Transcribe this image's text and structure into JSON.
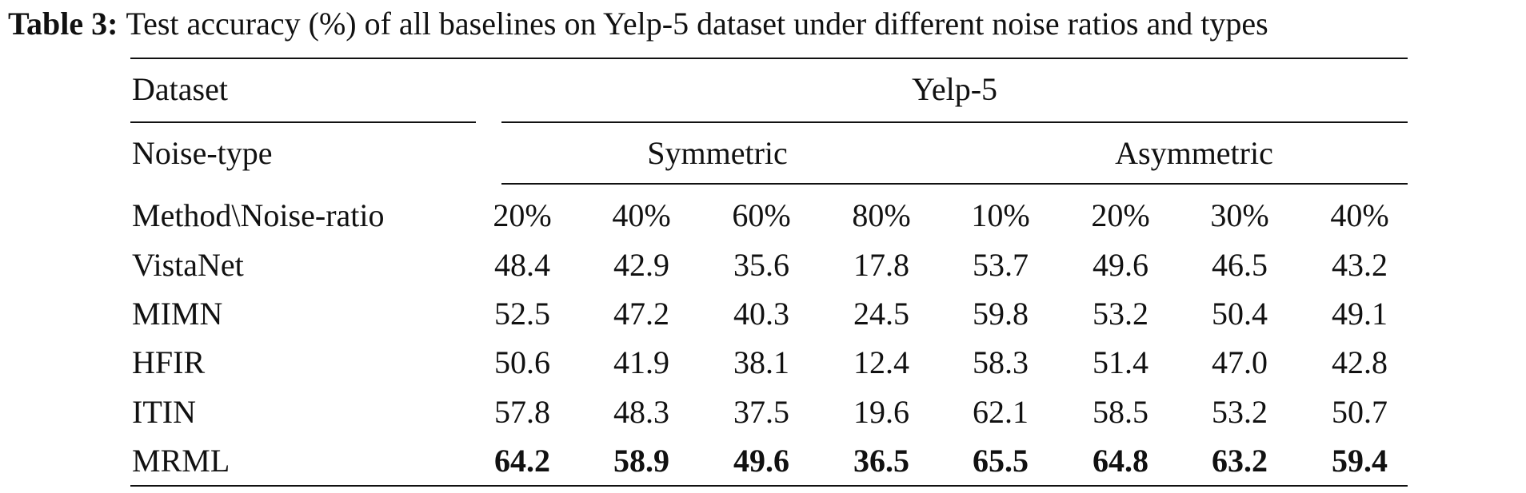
{
  "caption": {
    "label": "Table 3:",
    "text": "Test accuracy (%) of all baselines on Yelp-5 dataset under different noise ratios and types"
  },
  "table": {
    "dataset_label": "Dataset",
    "dataset_value": "Yelp-5",
    "noise_type_label": "Noise-type",
    "noise_types": [
      "Symmetric",
      "Asymmetric"
    ],
    "method_header": "Method\\Noise-ratio",
    "noise_ratios": [
      "20%",
      "40%",
      "60%",
      "80%",
      "10%",
      "20%",
      "30%",
      "40%"
    ],
    "rows": [
      {
        "method": "VistaNet",
        "values": [
          "48.4",
          "42.9",
          "35.6",
          "17.8",
          "53.7",
          "49.6",
          "46.5",
          "43.2"
        ],
        "bold": false
      },
      {
        "method": "MIMN",
        "values": [
          "52.5",
          "47.2",
          "40.3",
          "24.5",
          "59.8",
          "53.2",
          "50.4",
          "49.1"
        ],
        "bold": false
      },
      {
        "method": "HFIR",
        "values": [
          "50.6",
          "41.9",
          "38.1",
          "12.4",
          "58.3",
          "51.4",
          "47.0",
          "42.8"
        ],
        "bold": false
      },
      {
        "method": "ITIN",
        "values": [
          "57.8",
          "48.3",
          "37.5",
          "19.6",
          "62.1",
          "58.5",
          "53.2",
          "50.7"
        ],
        "bold": false
      },
      {
        "method": "MRML",
        "values": [
          "64.2",
          "58.9",
          "49.6",
          "36.5",
          "65.5",
          "64.8",
          "63.2",
          "59.4"
        ],
        "bold": true
      }
    ]
  }
}
